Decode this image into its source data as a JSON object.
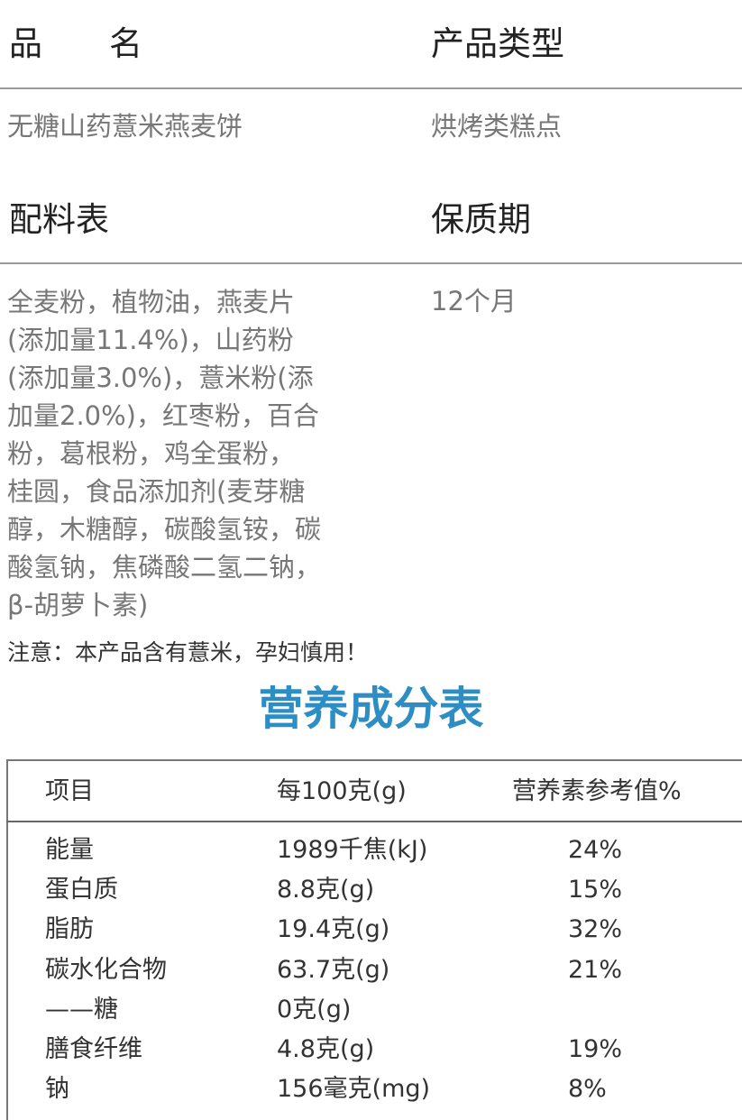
{
  "product": {
    "name_label": "品　　名",
    "type_label": "产品类型",
    "name_value": "无糖山药薏米燕麦饼",
    "type_value": "烘烤类糕点",
    "ingredients_label": "配料表",
    "shelf_life_label": "保质期",
    "ingredients_lines": [
      "全麦粉，植物油，燕麦片",
      "(添加量11.4%)，山药粉",
      "(添加量3.0%)，薏米粉(添",
      "加量2.0%)，红枣粉，百合",
      "粉，葛根粉，鸡全蛋粉，",
      "桂圆，食品添加剂(麦芽糖",
      "醇，木糖醇，碳酸氢铵，碳",
      "酸氢钠，焦磷酸二氢二钠，",
      "β-胡萝卜素)"
    ],
    "shelf_life_value": "12个月",
    "notice": "注意：本产品含有薏米，孕妇慎用！"
  },
  "nutrition": {
    "title": "营养成分表",
    "title_color": "#2e8ec4",
    "headers": [
      "项目",
      "每100克(g)",
      "营养素参考值%"
    ],
    "rows": [
      {
        "item": "能量",
        "per100g": "1989千焦(kJ)",
        "nrv": "24%"
      },
      {
        "item": "蛋白质",
        "per100g": "8.8克(g)",
        "nrv": "15%"
      },
      {
        "item": "脂肪",
        "per100g": "19.4克(g)",
        "nrv": "32%"
      },
      {
        "item": "碳水化合物",
        "per100g": "63.7克(g)",
        "nrv": "21%"
      },
      {
        "item": "——糖",
        "per100g": "0克(g)",
        "nrv": ""
      },
      {
        "item": "膳食纤维",
        "per100g": "4.8克(g)",
        "nrv": "19%"
      },
      {
        "item": "钠",
        "per100g": "156毫克(mg)",
        "nrv": "8%"
      }
    ]
  }
}
